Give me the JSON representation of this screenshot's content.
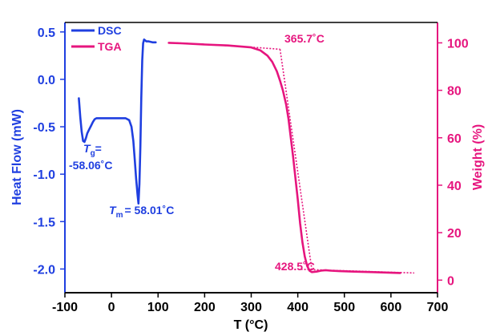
{
  "colors": {
    "dsc": "#1f3fe0",
    "tga": "#e6157e",
    "axis": "#000000"
  },
  "chart_data": {
    "type": "line",
    "xlabel": "T (°C)",
    "ylabel_left": "Heat Flow (mW)",
    "ylabel_right": "Weight (%)",
    "xlim": [
      -100,
      700
    ],
    "ylim_left": [
      -2.25,
      0.6
    ],
    "ylim_right": [
      -5.3,
      108.6
    ],
    "x_ticks": [
      "-100",
      "0",
      "100",
      "200",
      "300",
      "400",
      "500",
      "600",
      "700"
    ],
    "y_left_ticks": [
      "0.5",
      "0.0",
      "-0.5",
      "-1.0",
      "-1.5",
      "-2.0"
    ],
    "y_right_ticks": [
      "100",
      "80",
      "60",
      "40",
      "20",
      "0"
    ],
    "legend_position": "top-left",
    "series": [
      {
        "name": "DSC",
        "axis": "left",
        "points": [
          [
            -70,
            -0.2
          ],
          [
            -67,
            -0.4
          ],
          [
            -64,
            -0.55
          ],
          [
            -61,
            -0.65
          ],
          [
            -58,
            -0.66
          ],
          [
            -55,
            -0.62
          ],
          [
            -52,
            -0.57
          ],
          [
            -48,
            -0.53
          ],
          [
            -44,
            -0.49
          ],
          [
            -40,
            -0.45
          ],
          [
            -36,
            -0.42
          ],
          [
            -32,
            -0.41
          ],
          [
            -25,
            -0.41
          ],
          [
            -15,
            -0.41
          ],
          [
            0,
            -0.41
          ],
          [
            15,
            -0.41
          ],
          [
            30,
            -0.41
          ],
          [
            38,
            -0.43
          ],
          [
            43,
            -0.5
          ],
          [
            47,
            -0.65
          ],
          [
            50,
            -0.85
          ],
          [
            53,
            -1.05
          ],
          [
            56,
            -1.22
          ],
          [
            58,
            -1.31
          ],
          [
            60,
            -1.1
          ],
          [
            62,
            -0.7
          ],
          [
            64,
            -0.2
          ],
          [
            66,
            0.2
          ],
          [
            68,
            0.38
          ],
          [
            70,
            0.42
          ],
          [
            75,
            0.4
          ],
          [
            80,
            0.4
          ],
          [
            88,
            0.39
          ],
          [
            95,
            0.39
          ]
        ]
      },
      {
        "name": "TGA",
        "axis": "right",
        "points": [
          [
            123,
            100
          ],
          [
            150,
            99.8
          ],
          [
            200,
            99.3
          ],
          [
            250,
            98.9
          ],
          [
            300,
            98.1
          ],
          [
            320,
            96.8
          ],
          [
            335,
            94.6
          ],
          [
            345,
            92
          ],
          [
            355,
            88
          ],
          [
            362,
            84
          ],
          [
            368,
            80
          ],
          [
            375,
            74
          ],
          [
            380,
            68
          ],
          [
            385,
            60
          ],
          [
            390,
            52
          ],
          [
            395,
            43
          ],
          [
            400,
            34
          ],
          [
            405,
            24
          ],
          [
            410,
            16
          ],
          [
            415,
            10
          ],
          [
            420,
            6
          ],
          [
            425,
            4
          ],
          [
            430,
            3.4
          ],
          [
            440,
            3.6
          ],
          [
            450,
            4
          ],
          [
            460,
            4.2
          ],
          [
            470,
            4
          ],
          [
            490,
            3.8
          ],
          [
            520,
            3.6
          ],
          [
            560,
            3.4
          ],
          [
            600,
            3.1
          ],
          [
            620,
            3
          ]
        ]
      }
    ],
    "tangents": [
      {
        "series": "TGA",
        "points": [
          [
            140,
            100
          ],
          [
            300,
            98.2
          ],
          [
            362,
            97.3
          ]
        ]
      },
      {
        "series": "TGA",
        "points": [
          [
            362,
            97.3
          ],
          [
            430,
            4.6
          ]
        ]
      },
      {
        "series": "TGA",
        "points": [
          [
            400,
            4.6
          ],
          [
            650,
            3
          ]
        ]
      }
    ],
    "annotations": [
      {
        "text": "365.7˚C",
        "x": 355,
        "y": 98
      },
      {
        "text": "428.5˚C",
        "x": 392,
        "y": 1.5
      }
    ],
    "dsc_annotations": {
      "tg_symbol": "T",
      "tg_subscript": "g",
      "tg_suffix": "=",
      "tg_value": "-58.06˚C",
      "tm_symbol": "T",
      "tm_subscript": "m",
      "tm_value": "= 58.01˚C"
    }
  }
}
